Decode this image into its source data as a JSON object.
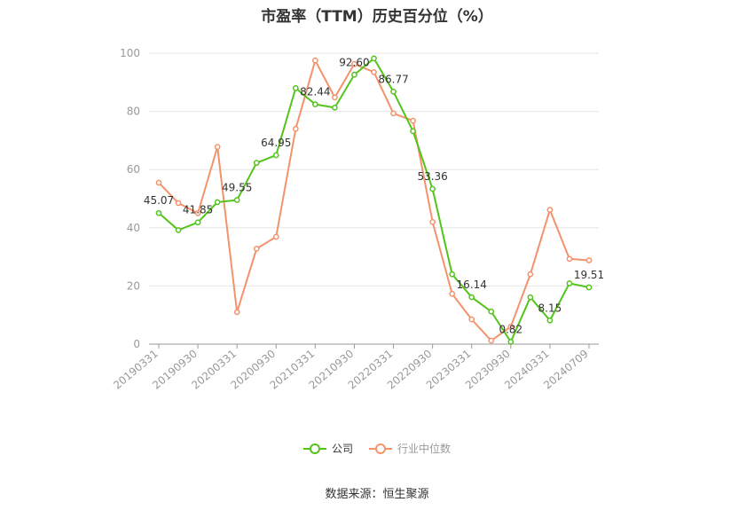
{
  "chart_data": {
    "type": "line",
    "title": "市盈率（TTM）历史百分位（%）",
    "ylim": [
      0,
      100
    ],
    "yticks": [
      0,
      20,
      40,
      60,
      80,
      100
    ],
    "x": [
      "20190331",
      "20190630",
      "20190930",
      "20191231",
      "20200331",
      "20200630",
      "20200930",
      "20201231",
      "20210331",
      "20210630",
      "20210930",
      "20211231",
      "20220331",
      "20220630",
      "20220930",
      "20221231",
      "20230331",
      "20230630",
      "20230930",
      "20231231",
      "20240331",
      "20240630",
      "20240709"
    ],
    "xtick_labels": [
      "20190331",
      "20190930",
      "20200331",
      "20200930",
      "20210331",
      "20210930",
      "20220331",
      "20220930",
      "20230331",
      "20230930",
      "20240331",
      "20240709"
    ],
    "series": [
      {
        "name": "公司",
        "color": "#52c41a",
        "values": [
          45.07,
          39.2,
          41.85,
          48.8,
          49.55,
          62.3,
          64.95,
          88.0,
          82.44,
          81.3,
          92.6,
          98.2,
          86.77,
          73.2,
          53.36,
          24.0,
          16.14,
          11.2,
          0.82,
          16.1,
          8.15,
          20.9,
          19.51
        ],
        "labels": {
          "0": "45.07",
          "2": "41.85",
          "4": "49.55",
          "6": "64.95",
          "8": "82.44",
          "10": "92.60",
          "12": "86.77",
          "14": "53.36",
          "16": "16.14",
          "18": "0.82",
          "20": "8.15",
          "22": "19.51"
        }
      },
      {
        "name": "行业中位数",
        "color": "#f4926b",
        "values": [
          55.5,
          48.5,
          45.0,
          67.8,
          11.0,
          32.8,
          36.9,
          74.0,
          97.5,
          84.8,
          96.3,
          93.5,
          79.3,
          76.8,
          42.0,
          17.3,
          8.5,
          1.2,
          6.0,
          24.0,
          46.2,
          29.3,
          28.8
        ]
      }
    ],
    "legend_position": "bottom",
    "grid": true
  },
  "source_text": "数据来源：恒生聚源"
}
